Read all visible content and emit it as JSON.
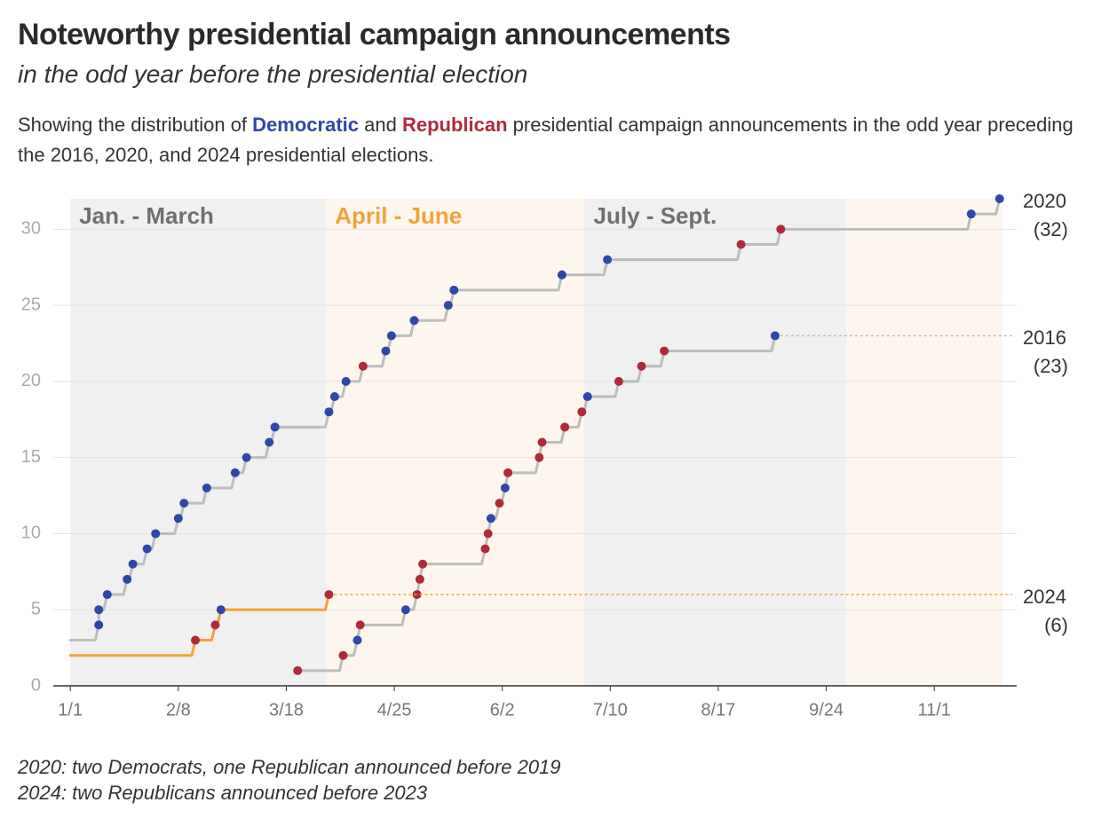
{
  "chart_data": {
    "type": "step",
    "title": "Noteworthy presidential campaign announcements",
    "subtitle": "in the odd year before the presidential election",
    "description": [
      "Showing the distribution of ",
      "Democratic",
      " and ",
      "Republican",
      " presidential campaign announcements in the odd year preceding the 2016, 2020, and 2024 presidential elections."
    ],
    "description_colors": [
      null,
      "#2f47a6",
      null,
      "#ae2b3b",
      null
    ],
    "periods": [
      {
        "label": "Jan. - March",
        "start": 0,
        "end": 90,
        "color": "#f0f0f0",
        "label_color": "#707070"
      },
      {
        "label": "April - June",
        "start": 90,
        "end": 181,
        "color": "#fdf6ee",
        "label_color": "#f2a23a"
      },
      {
        "label": "July - Sept.",
        "start": 181,
        "end": 273,
        "color": "#f0f0f0",
        "label_color": "#707070"
      },
      {
        "label": null,
        "start": 273,
        "end": 328,
        "color": "#fdf6ee",
        "label_color": "#707070"
      }
    ],
    "xlim": [
      -6,
      333
    ],
    "xticks": [
      {
        "value": 0,
        "label": "1/1"
      },
      {
        "value": 38,
        "label": "2/8"
      },
      {
        "value": 76,
        "label": "3/18"
      },
      {
        "value": 114,
        "label": "4/25"
      },
      {
        "value": 152,
        "label": "6/2"
      },
      {
        "value": 190,
        "label": "7/10"
      },
      {
        "value": 228,
        "label": "8/17"
      },
      {
        "value": 266,
        "label": "9/24"
      },
      {
        "value": 304,
        "label": "11/1"
      }
    ],
    "ylim": [
      0,
      32
    ],
    "yticks": [
      0,
      5,
      10,
      15,
      20,
      25,
      30
    ],
    "grid": true,
    "series": [
      {
        "name": "2020",
        "end_label": "(32)",
        "color": "#bdbdbd",
        "extend": false,
        "x": [
          0,
          10,
          10,
          13,
          20,
          22,
          27,
          30,
          38,
          40,
          48,
          58,
          62,
          70,
          72,
          91,
          93,
          97,
          103,
          111,
          113,
          121,
          133,
          135,
          173,
          189,
          236,
          250,
          317,
          327
        ],
        "values": [
          3,
          4,
          5,
          6,
          7,
          8,
          9,
          10,
          11,
          12,
          13,
          14,
          15,
          16,
          17,
          18,
          19,
          20,
          21,
          22,
          23,
          24,
          25,
          26,
          27,
          28,
          29,
          30,
          31,
          32
        ],
        "dot_colors": [
          null,
          "#2f47a6",
          "#2f47a6",
          "#2f47a6",
          "#2f47a6",
          "#2f47a6",
          "#2f47a6",
          "#2f47a6",
          "#2f47a6",
          "#2f47a6",
          "#2f47a6",
          "#2f47a6",
          "#2f47a6",
          "#2f47a6",
          "#2f47a6",
          "#2f47a6",
          "#2f47a6",
          "#2f47a6",
          "#ae2b3b",
          "#2f47a6",
          "#2f47a6",
          "#2f47a6",
          "#2f47a6",
          "#2f47a6",
          "#2f47a6",
          "#2f47a6",
          "#ae2b3b",
          "#ae2b3b",
          "#2f47a6",
          "#2f47a6"
        ]
      },
      {
        "name": "2016",
        "end_label": "(23)",
        "color": "#bdbdbd",
        "extend": true,
        "x": [
          80,
          96,
          101,
          102,
          118,
          122,
          123,
          124,
          146,
          147,
          148,
          151,
          153,
          154,
          165,
          166,
          174,
          180,
          182,
          193,
          201,
          209,
          248
        ],
        "values": [
          1,
          2,
          3,
          4,
          5,
          6,
          7,
          8,
          9,
          10,
          11,
          12,
          13,
          14,
          15,
          16,
          17,
          18,
          19,
          20,
          21,
          22,
          23
        ],
        "dot_colors": [
          "#ae2b3b",
          "#ae2b3b",
          "#2f47a6",
          "#ae2b3b",
          "#2f47a6",
          "#ae2b3b",
          "#ae2b3b",
          "#ae2b3b",
          "#ae2b3b",
          "#ae2b3b",
          "#2f47a6",
          "#ae2b3b",
          "#2f47a6",
          "#ae2b3b",
          "#ae2b3b",
          "#ae2b3b",
          "#ae2b3b",
          "#ae2b3b",
          "#2f47a6",
          "#ae2b3b",
          "#ae2b3b",
          "#ae2b3b",
          "#2f47a6"
        ]
      },
      {
        "name": "2024",
        "end_label": "(6)",
        "color": "#f2a23a",
        "extend": true,
        "x": [
          0,
          44,
          51,
          53,
          91
        ],
        "values": [
          2,
          3,
          4,
          5,
          6
        ],
        "dot_colors": [
          null,
          "#ae2b3b",
          "#ae2b3b",
          "#2f47a6",
          "#ae2b3b"
        ]
      }
    ],
    "footnotes": [
      "2020: two Democrats, one Republican announced before 2019",
      "2024: two Republicans announced before 2023"
    ]
  }
}
